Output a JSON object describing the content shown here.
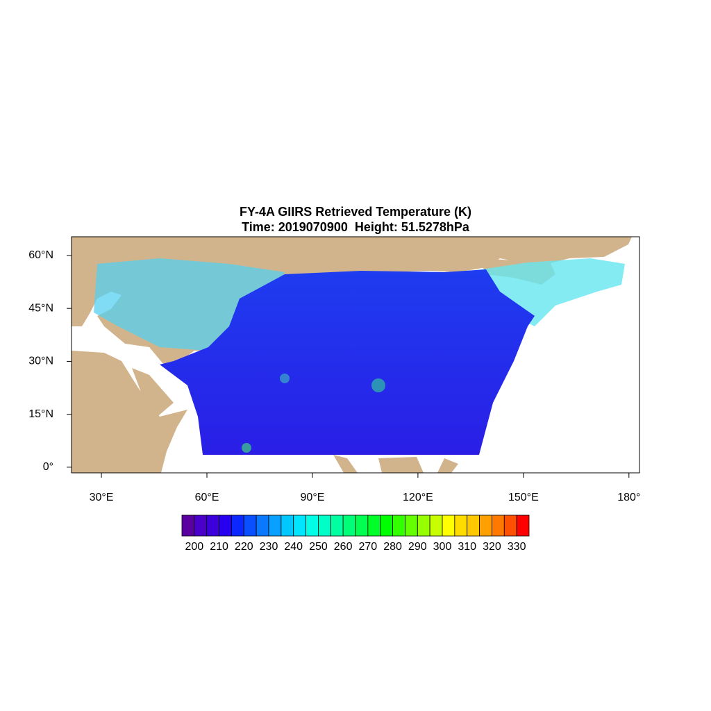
{
  "chart_data": {
    "type": "map",
    "title": "FY-4A GIIRS Retrieved Temperature (K)",
    "subtitle": "Time: 2019070900  Height: 51.5278hPa",
    "xlim": [
      21.5,
      183
    ],
    "ylim": [
      -1.6,
      65.3
    ],
    "xticks": [
      {
        "value": 30,
        "label": "30°E"
      },
      {
        "value": 60,
        "label": "60°E"
      },
      {
        "value": 90,
        "label": "90°E"
      },
      {
        "value": 120,
        "label": "120°E"
      },
      {
        "value": 150,
        "label": "150°E"
      },
      {
        "value": 180,
        "label": "180°"
      }
    ],
    "yticks": [
      {
        "value": 0,
        "label": "0°"
      },
      {
        "value": 15,
        "label": "15°N"
      },
      {
        "value": 30,
        "label": "30°N"
      },
      {
        "value": 45,
        "label": "45°N"
      },
      {
        "value": 60,
        "label": "60°N"
      }
    ],
    "colorbar": {
      "lim": [
        195,
        335
      ],
      "ticks": [
        200,
        210,
        220,
        230,
        240,
        250,
        260,
        270,
        280,
        290,
        300,
        310,
        320,
        330
      ],
      "colors": [
        "#5a00a0",
        "#4a00c8",
        "#3c00dc",
        "#2800f0",
        "#0a28ff",
        "#0a50ff",
        "#0a78ff",
        "#0aa0ff",
        "#00c8ff",
        "#00e6ff",
        "#00ffe6",
        "#00ffc8",
        "#00ffa0",
        "#00ff78",
        "#00ff50",
        "#00ff28",
        "#00ff00",
        "#32ff00",
        "#64ff00",
        "#96ff00",
        "#c8ff00",
        "#ffff00",
        "#ffdc00",
        "#ffc800",
        "#ffa000",
        "#ff7800",
        "#ff5000",
        "#ff0000"
      ]
    }
  }
}
